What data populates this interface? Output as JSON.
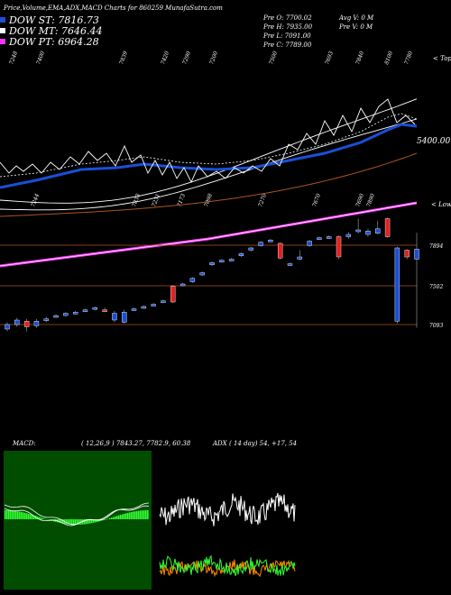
{
  "page": {
    "title": "Price,Volume,EMA,ADX,MACD Charts for 860259 MunafaSutra.com"
  },
  "legend": [
    {
      "label": "DOW ST: 7816.73",
      "color": "#1a4fd6"
    },
    {
      "label": "DOW MT: 7646.44",
      "color": "#ffffff"
    },
    {
      "label": "DOW PT: 6964.28",
      "color": "#ff33ff"
    }
  ],
  "ohlc_info": {
    "lines": [
      "Pre  O: 7700.02",
      "Pre  H: 7935.00",
      "Pre  L: 7091.00",
      "Pre  C: 7789.00"
    ],
    "avg_lines": [
      "Avg V: 0  M",
      "Pre  V: 0  M"
    ]
  },
  "edge_labels": {
    "top": "< Tops",
    "bottom": "< Lows"
  },
  "chart_data": [
    {
      "type": "line",
      "panel": "price-candles",
      "title": "Price,Volume,EMA,ADX,MACD Charts for 860259 MunafaSutra.com",
      "price_label": "5400.00",
      "top_labels": [
        "7248",
        "7400",
        "7839",
        "7420",
        "7290",
        "7200",
        "7500",
        "7693",
        "7840",
        "8100",
        "7780"
      ],
      "bottom_labels": [
        "7244",
        "7833",
        "7231",
        "7173",
        "7098",
        "7270",
        "7670",
        "7690",
        "7890"
      ],
      "levels": [
        {
          "label": "7894",
          "value": 7894
        },
        {
          "label": "7502",
          "value": 7502
        },
        {
          "label": "7093",
          "value": 7093
        }
      ],
      "candles": [
        {
          "o": 7080,
          "c": 7120,
          "h": 7140,
          "l": 7060,
          "color": "#1a4fd6"
        },
        {
          "o": 7120,
          "c": 7160,
          "h": 7180,
          "l": 7100,
          "color": "#1a4fd6"
        },
        {
          "o": 7150,
          "c": 7100,
          "h": 7170,
          "l": 7060,
          "color": "#e32020"
        },
        {
          "o": 7110,
          "c": 7150,
          "h": 7170,
          "l": 7090,
          "color": "#1a4fd6"
        },
        {
          "o": 7170,
          "c": 7160,
          "h": 7190,
          "l": 7140,
          "color": "#1a4fd6"
        },
        {
          "o": 7190,
          "c": 7200,
          "h": 7210,
          "l": 7180,
          "color": "#1a4fd6"
        },
        {
          "o": 7200,
          "c": 7220,
          "h": 7230,
          "l": 7190,
          "color": "#1a4fd6"
        },
        {
          "o": 7220,
          "c": 7230,
          "h": 7240,
          "l": 7210,
          "color": "#1a4fd6"
        },
        {
          "o": 7240,
          "c": 7250,
          "h": 7260,
          "l": 7230,
          "color": "#1a4fd6"
        },
        {
          "o": 7260,
          "c": 7270,
          "h": 7280,
          "l": 7250,
          "color": "#1a4fd6"
        },
        {
          "o": 7250,
          "c": 7240,
          "h": 7270,
          "l": 7230,
          "color": "#e32020"
        },
        {
          "o": 7220,
          "c": 7160,
          "h": 7240,
          "l": 7140,
          "color": "#1a4fd6"
        },
        {
          "o": 7140,
          "c": 7230,
          "h": 7250,
          "l": 7130,
          "color": "#1a4fd6"
        },
        {
          "o": 7250,
          "c": 7260,
          "h": 7270,
          "l": 7240,
          "color": "#1a4fd6"
        },
        {
          "o": 7270,
          "c": 7280,
          "h": 7290,
          "l": 7260,
          "color": "#1a4fd6"
        },
        {
          "o": 7290,
          "c": 7300,
          "h": 7310,
          "l": 7280,
          "color": "#1a4fd6"
        },
        {
          "o": 7320,
          "c": 7330,
          "h": 7340,
          "l": 7310,
          "color": "#1a4fd6"
        },
        {
          "o": 7320,
          "c": 7460,
          "h": 7470,
          "l": 7310,
          "color": "#e32020"
        },
        {
          "o": 7470,
          "c": 7480,
          "h": 7490,
          "l": 7460,
          "color": "#1a4fd6"
        },
        {
          "o": 7500,
          "c": 7530,
          "h": 7540,
          "l": 7490,
          "color": "#1a4fd6"
        },
        {
          "o": 7560,
          "c": 7580,
          "h": 7590,
          "l": 7550,
          "color": "#1a4fd6"
        },
        {
          "o": 7650,
          "c": 7670,
          "h": 7680,
          "l": 7640,
          "color": "#1a4fd6"
        },
        {
          "o": 7680,
          "c": 7690,
          "h": 7700,
          "l": 7670,
          "color": "#1a4fd6"
        },
        {
          "o": 7690,
          "c": 7700,
          "h": 7710,
          "l": 7680,
          "color": "#1a4fd6"
        },
        {
          "o": 7730,
          "c": 7750,
          "h": 7760,
          "l": 7720,
          "color": "#1a4fd6"
        },
        {
          "o": 7780,
          "c": 7800,
          "h": 7810,
          "l": 7770,
          "color": "#1a4fd6"
        },
        {
          "o": 7820,
          "c": 7850,
          "h": 7860,
          "l": 7810,
          "color": "#1a4fd6"
        },
        {
          "o": 7860,
          "c": 7870,
          "h": 7880,
          "l": 7850,
          "color": "#1a4fd6"
        },
        {
          "o": 7840,
          "c": 7710,
          "h": 7850,
          "l": 7700,
          "color": "#e32020"
        },
        {
          "o": 7650,
          "c": 7660,
          "h": 7670,
          "l": 7640,
          "color": "#1a4fd6"
        },
        {
          "o": 7700,
          "c": 7720,
          "h": 7780,
          "l": 7690,
          "color": "#1a4fd6"
        },
        {
          "o": 7820,
          "c": 7860,
          "h": 7870,
          "l": 7810,
          "color": "#1a4fd6"
        },
        {
          "o": 7880,
          "c": 7890,
          "h": 7900,
          "l": 7870,
          "color": "#1a4fd6"
        },
        {
          "o": 7890,
          "c": 7900,
          "h": 7910,
          "l": 7880,
          "color": "#1a4fd6"
        },
        {
          "o": 7900,
          "c": 7720,
          "h": 7910,
          "l": 7700,
          "color": "#e32020"
        },
        {
          "o": 7900,
          "c": 7920,
          "h": 7940,
          "l": 7880,
          "color": "#1a4fd6"
        },
        {
          "o": 7950,
          "c": 7960,
          "h": 8060,
          "l": 7930,
          "color": "#1a4fd6"
        },
        {
          "o": 7920,
          "c": 7950,
          "h": 7970,
          "l": 7900,
          "color": "#1a4fd6"
        },
        {
          "o": 7930,
          "c": 7970,
          "h": 8040,
          "l": 7920,
          "color": "#1a4fd6"
        },
        {
          "o": 8060,
          "c": 7900,
          "h": 8070,
          "l": 7890,
          "color": "#e32020"
        },
        {
          "o": 7150,
          "c": 7800,
          "h": 7810,
          "l": 7130,
          "color": "#1a4fd6"
        },
        {
          "o": 7780,
          "c": 7720,
          "h": 7790,
          "l": 7700,
          "color": "#e32020"
        },
        {
          "o": 7700,
          "c": 7789,
          "h": 7935,
          "l": 7091,
          "color": "#1a4fd6"
        }
      ],
      "series": [
        {
          "name": "DOW ST: 7816.73",
          "color": "#1a4fd6"
        },
        {
          "name": "DOW MT: 7646.44",
          "color": "#ffffff"
        },
        {
          "name": "DOW PT: 6964.28",
          "color": "#ff33ff"
        }
      ]
    },
    {
      "type": "line",
      "panel": "macd",
      "title": "MACD",
      "values_text": "( 12,26,9 ) 7843.27,  7782.9,  60.38",
      "background": "#004d00",
      "histogram_color": "#33ff33"
    },
    {
      "type": "line",
      "panel": "adx",
      "title": "ADX",
      "values_text": "( 14  day) 54,  +17,  54",
      "series": [
        {
          "color": "#ffffff"
        },
        {
          "color": "#33ff33"
        },
        {
          "color": "#ff8800"
        }
      ]
    }
  ]
}
